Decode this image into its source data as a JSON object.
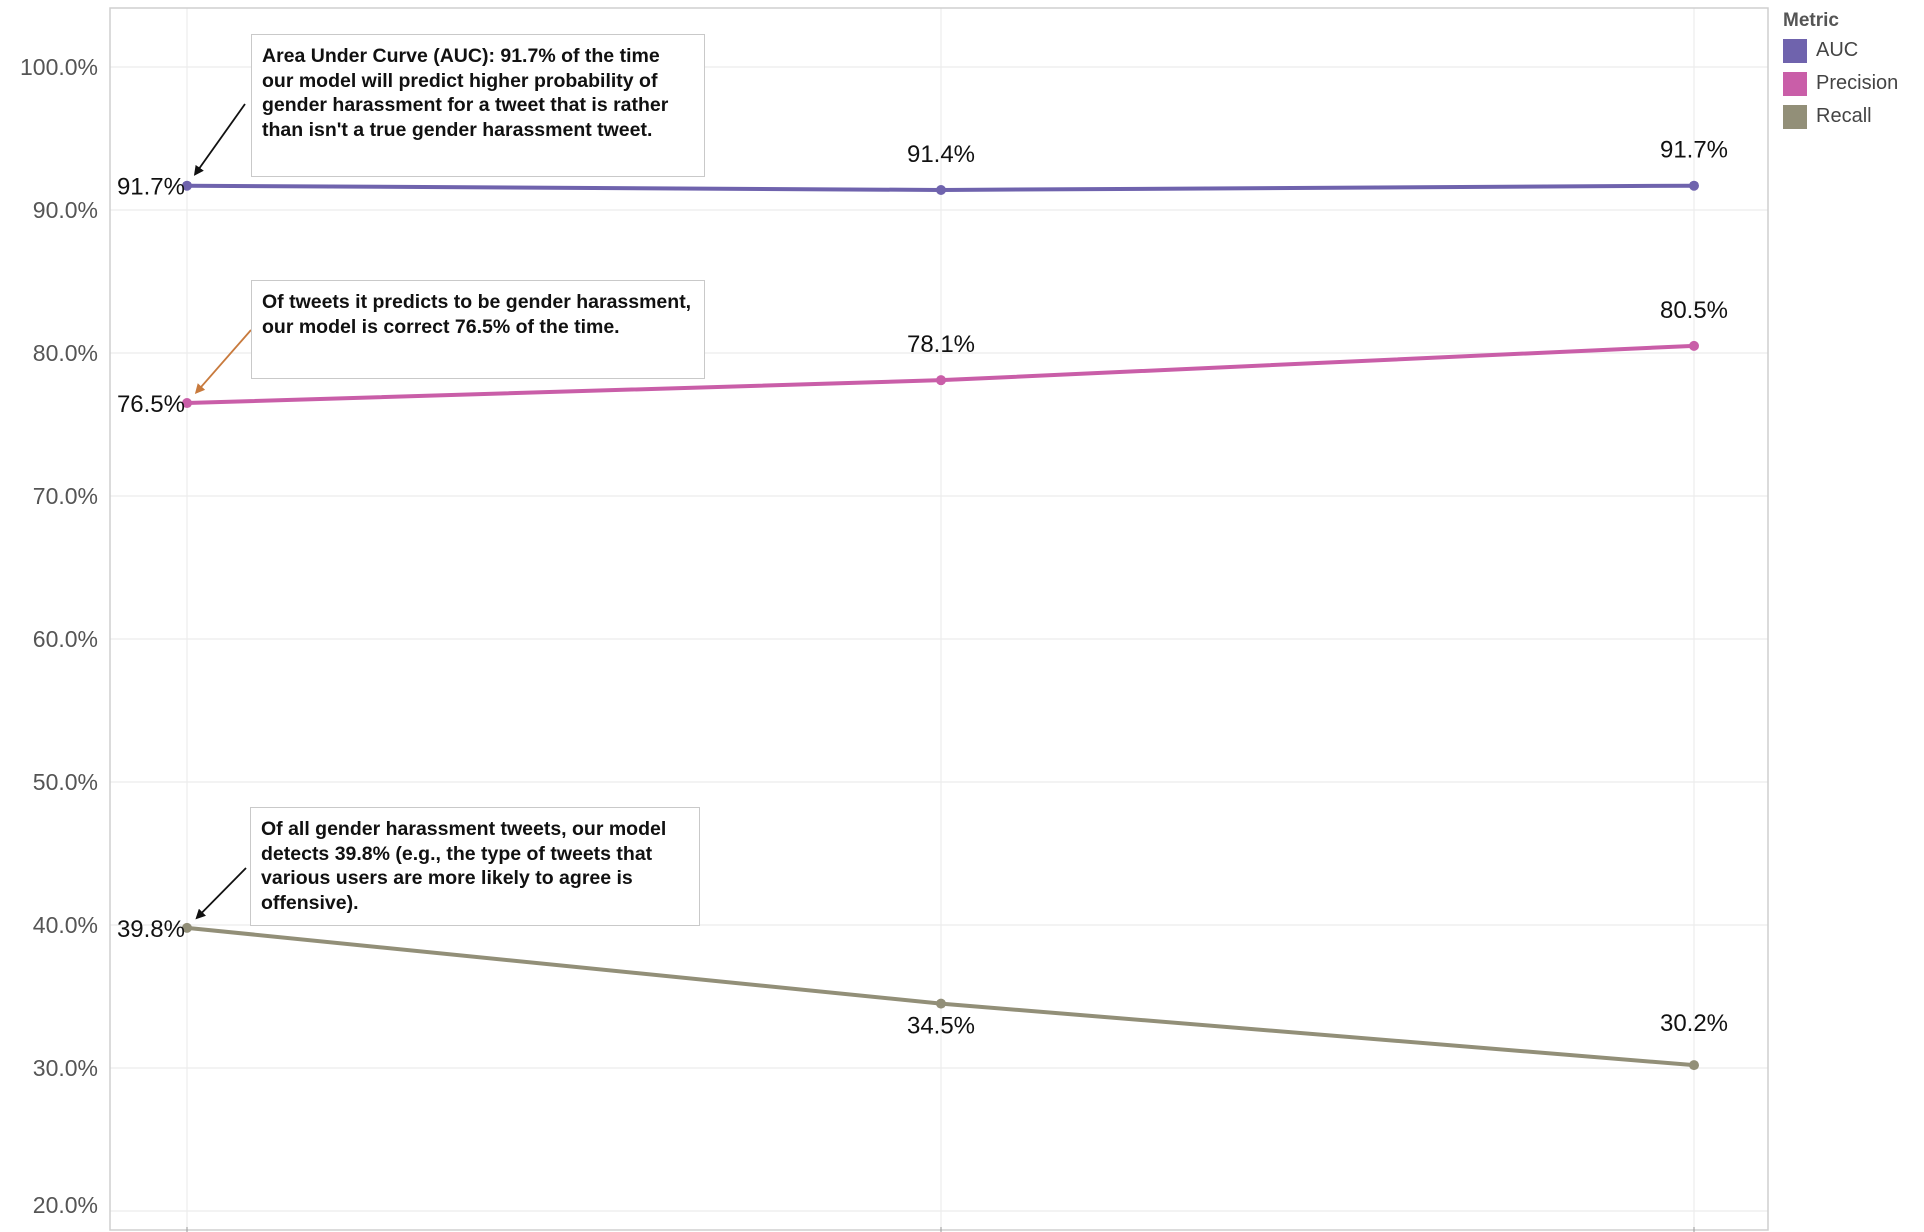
{
  "chart_data": {
    "type": "line",
    "title": "",
    "xlabel": "",
    "ylabel": "",
    "ylim": [
      0.2,
      1.0
    ],
    "yticks": [
      "100.0%",
      "90.0%",
      "80.0%",
      "70.0%",
      "60.0%",
      "50.0%",
      "40.0%",
      "30.0%",
      "20.0%"
    ],
    "x": [
      1,
      2,
      3
    ],
    "series": [
      {
        "name": "AUC",
        "color": "#6f63ad",
        "values": [
          0.917,
          0.914,
          0.917
        ],
        "labels": [
          "91.7%",
          "91.4%",
          "91.7%"
        ]
      },
      {
        "name": "Precision",
        "color": "#c95ea8",
        "values": [
          0.765,
          0.781,
          0.805
        ],
        "labels": [
          "76.5%",
          "78.1%",
          "80.5%"
        ]
      },
      {
        "name": "Recall",
        "color": "#928f78",
        "values": [
          0.398,
          0.345,
          0.302
        ],
        "labels": [
          "39.8%",
          "34.5%",
          "30.2%"
        ]
      }
    ],
    "legend": {
      "title": "Metric",
      "position": "top-right"
    },
    "annotations": [
      {
        "target_series": "AUC",
        "point_index": 0,
        "arrow_color": "#111111",
        "text": "Area Under Curve (AUC): 91.7% of the time our model will predict higher probability of gender harassment for a tweet that is rather than isn't a true gender harassment tweet."
      },
      {
        "target_series": "Precision",
        "point_index": 0,
        "arrow_color": "#c87a3d",
        "text": "Of tweets it predicts to be gender harassment, our model is correct 76.5% of the time."
      },
      {
        "target_series": "Recall",
        "point_index": 0,
        "arrow_color": "#111111",
        "text": "Of all gender harassment tweets, our model detects 39.8% (e.g., the type of tweets that various users are more likely to agree is offensive)."
      }
    ]
  }
}
